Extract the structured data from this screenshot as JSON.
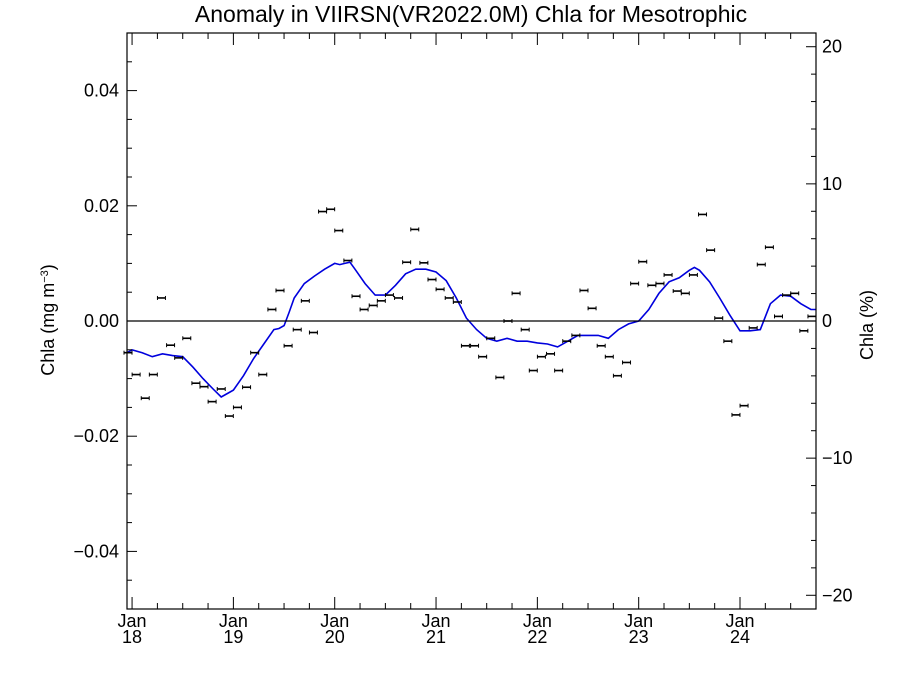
{
  "chart_data": {
    "type": "line",
    "title": "Anomaly in VIIRSN(VR2022.0M) Chla for Mesotrophic",
    "ylabel_left": "Chla (mg m",
    "ylabel_left_sup": "−3",
    "ylabel_left_close": ")",
    "ylabel_right": "Chla (%)",
    "ylim_left": [
      -0.05,
      0.05
    ],
    "ylim_right": [
      -21,
      21
    ],
    "xlim": [
      2017.95,
      2024.75
    ],
    "yticks_left": [
      {
        "v": 0.04,
        "label": "0.04"
      },
      {
        "v": 0.02,
        "label": "0.02"
      },
      {
        "v": 0.0,
        "label": "0.00"
      },
      {
        "v": -0.02,
        "label": "−0.02"
      },
      {
        "v": -0.04,
        "label": "−0.04"
      }
    ],
    "yticks_right": [
      {
        "v": 20,
        "label": "20"
      },
      {
        "v": 10,
        "label": "10"
      },
      {
        "v": 0,
        "label": "0"
      },
      {
        "v": -10,
        "label": "−10"
      },
      {
        "v": -20,
        "label": "−20"
      }
    ],
    "xticks": [
      {
        "v": 2018,
        "month": "Jan",
        "year": "18"
      },
      {
        "v": 2019,
        "month": "Jan",
        "year": "19"
      },
      {
        "v": 2020,
        "month": "Jan",
        "year": "20"
      },
      {
        "v": 2021,
        "month": "Jan",
        "year": "21"
      },
      {
        "v": 2022,
        "month": "Jan",
        "year": "22"
      },
      {
        "v": 2023,
        "month": "Jan",
        "year": "23"
      },
      {
        "v": 2024,
        "month": "Jan",
        "year": "24"
      }
    ],
    "zero_line": 0,
    "colors": {
      "points": "#000000",
      "smooth": "#0000dd",
      "axis": "#000000"
    },
    "series": [
      {
        "kind": "monthly_anomaly_points",
        "x": [
          2017.96,
          2018.04,
          2018.13,
          2018.21,
          2018.29,
          2018.38,
          2018.46,
          2018.54,
          2018.63,
          2018.71,
          2018.79,
          2018.88,
          2018.96,
          2019.04,
          2019.13,
          2019.21,
          2019.29,
          2019.38,
          2019.46,
          2019.54,
          2019.63,
          2019.71,
          2019.79,
          2019.88,
          2019.96,
          2020.04,
          2020.13,
          2020.21,
          2020.29,
          2020.38,
          2020.46,
          2020.54,
          2020.63,
          2020.71,
          2020.79,
          2020.88,
          2020.96,
          2021.04,
          2021.13,
          2021.21,
          2021.29,
          2021.38,
          2021.46,
          2021.54,
          2021.63,
          2021.71,
          2021.79,
          2021.88,
          2021.96,
          2022.04,
          2022.13,
          2022.21,
          2022.29,
          2022.38,
          2022.46,
          2022.54,
          2022.63,
          2022.71,
          2022.79,
          2022.88,
          2022.96,
          2023.04,
          2023.13,
          2023.21,
          2023.29,
          2023.38,
          2023.46,
          2023.54,
          2023.63,
          2023.71,
          2023.79,
          2023.88,
          2023.96,
          2024.04,
          2024.13,
          2024.21,
          2024.29,
          2024.38,
          2024.46,
          2024.54,
          2024.63,
          2024.71
        ],
        "y": [
          -0.0055,
          -0.0093,
          -0.0134,
          -0.0093,
          0.004,
          -0.0042,
          -0.0064,
          -0.003,
          -0.0108,
          -0.0114,
          -0.014,
          -0.0118,
          -0.0165,
          -0.015,
          -0.0115,
          -0.0055,
          -0.0093,
          0.002,
          0.0053,
          -0.0043,
          -0.0015,
          0.0035,
          -0.002,
          0.019,
          0.0194,
          0.0157,
          0.0105,
          0.0043,
          0.002,
          0.0027,
          0.0035,
          0.0045,
          0.004,
          0.0102,
          0.0159,
          0.0101,
          0.0072,
          0.0055,
          0.004,
          0.0033,
          -0.0043,
          -0.0043,
          -0.0062,
          -0.003,
          -0.0098,
          0.0,
          0.0048,
          -0.0015,
          -0.0086,
          -0.0062,
          -0.0057,
          -0.0086,
          -0.0035,
          -0.0025,
          0.0053,
          0.0022,
          -0.0043,
          -0.0062,
          -0.0095,
          -0.0072,
          0.0065,
          0.0103,
          0.0062,
          0.0065,
          0.008,
          0.0052,
          0.0048,
          0.008,
          0.0185,
          0.0123,
          0.0005,
          -0.0035,
          -0.0163,
          -0.0147,
          -0.0012,
          0.0098,
          0.0128,
          0.0008,
          0.0045,
          0.0048,
          -0.0017,
          0.0008
        ]
      },
      {
        "kind": "smoothed_anomaly",
        "x": [
          2017.95,
          2018.0,
          2018.1,
          2018.2,
          2018.3,
          2018.4,
          2018.5,
          2018.6,
          2018.7,
          2018.8,
          2018.88,
          2018.95,
          2019.0,
          2019.1,
          2019.2,
          2019.3,
          2019.4,
          2019.45,
          2019.5,
          2019.55,
          2019.6,
          2019.7,
          2019.8,
          2019.9,
          2020.0,
          2020.05,
          2020.1,
          2020.15,
          2020.2,
          2020.3,
          2020.4,
          2020.5,
          2020.6,
          2020.7,
          2020.8,
          2020.9,
          2021.0,
          2021.1,
          2021.2,
          2021.3,
          2021.4,
          2021.5,
          2021.6,
          2021.7,
          2021.8,
          2021.9,
          2022.0,
          2022.1,
          2022.2,
          2022.3,
          2022.4,
          2022.5,
          2022.6,
          2022.7,
          2022.8,
          2022.9,
          2023.0,
          2023.1,
          2023.2,
          2023.3,
          2023.4,
          2023.5,
          2023.55,
          2023.6,
          2023.7,
          2023.8,
          2023.9,
          2024.0,
          2024.1,
          2024.2,
          2024.3,
          2024.4,
          2024.5,
          2024.6,
          2024.7,
          2024.75
        ],
        "y": [
          -0.0055,
          -0.005,
          -0.0055,
          -0.0062,
          -0.0057,
          -0.006,
          -0.0062,
          -0.008,
          -0.01,
          -0.0118,
          -0.0132,
          -0.0125,
          -0.012,
          -0.0095,
          -0.0065,
          -0.004,
          -0.0015,
          -0.0013,
          -0.0008,
          0.0015,
          0.004,
          0.0065,
          0.0078,
          0.009,
          0.01,
          0.0098,
          0.01,
          0.0102,
          0.009,
          0.0065,
          0.0045,
          0.0045,
          0.0062,
          0.0082,
          0.009,
          0.009,
          0.0085,
          0.007,
          0.004,
          0.0005,
          -0.0015,
          -0.003,
          -0.0035,
          -0.003,
          -0.0035,
          -0.0035,
          -0.0038,
          -0.004,
          -0.0045,
          -0.0035,
          -0.0025,
          -0.0025,
          -0.0025,
          -0.003,
          -0.0015,
          -0.0005,
          0.0,
          0.002,
          0.0048,
          0.0068,
          0.0075,
          0.0088,
          0.0093,
          0.0088,
          0.0068,
          0.004,
          0.001,
          -0.0017,
          -0.0017,
          -0.0015,
          0.003,
          0.0045,
          0.0043,
          0.003,
          0.002,
          0.002
        ]
      }
    ]
  }
}
